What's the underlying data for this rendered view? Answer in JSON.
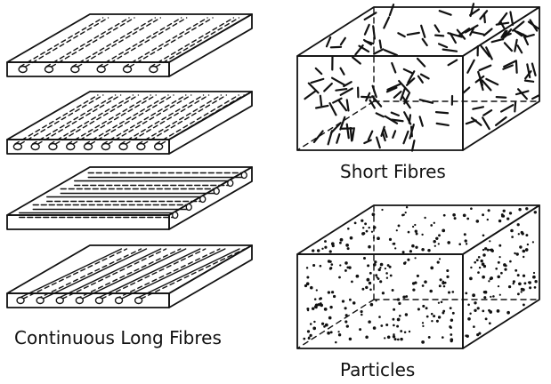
{
  "captions": {
    "continuous_long_fibres": "Continuous Long Fibres",
    "short_fibres": "Short Fibres",
    "particles": "Particles"
  },
  "style": {
    "ink": "#111111",
    "background": "#ffffff"
  },
  "long_fibre_plies": [
    {
      "fibre_orientation": "transverse"
    },
    {
      "fibre_orientation": "transverse-dense"
    },
    {
      "fibre_orientation": "longitudinal"
    },
    {
      "fibre_orientation": "angled"
    }
  ],
  "blocks": [
    {
      "name": "short-fibre-block",
      "filler": "short-fibres"
    },
    {
      "name": "particle-block",
      "filler": "particles"
    }
  ]
}
